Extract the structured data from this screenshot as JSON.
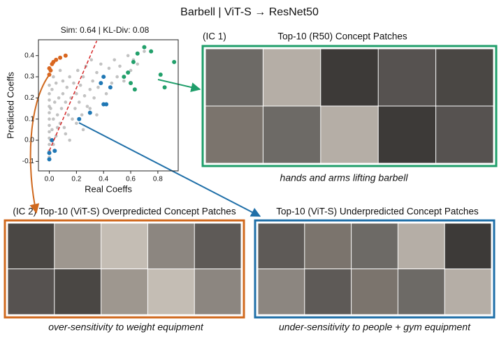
{
  "chart_data": {
    "type": "scatter",
    "title": "Barbell | ViT-S → ResNet50",
    "subtitle": "Sim: 0.64 | KL-Div: 0.08",
    "x_label": "Real Coeffs",
    "y_label": "Predicted Coeffs",
    "xlim": [
      -0.08,
      0.95
    ],
    "ylim": [
      -0.145,
      0.475
    ],
    "xticks": [
      {
        "value": 0,
        "label": "0.0"
      },
      0.2,
      0.4,
      0.6,
      0.8
    ],
    "yticks": [
      -0.1,
      {
        "value": 0,
        "label": "0.0"
      },
      0.1,
      0.2,
      0.3,
      0.4
    ],
    "series": [
      {
        "color": "#a8a8a8",
        "x": [
          0,
          0,
          0,
          0,
          0,
          0,
          0,
          0,
          0,
          0,
          0,
          0,
          0.01,
          0.01,
          0.02,
          0.02,
          0.03,
          0.03,
          0.04,
          0.05,
          0.05,
          0.06,
          0.07,
          0.08,
          0.08,
          0.09,
          0.1,
          0.1,
          0.11,
          0.12,
          0.13,
          0.14,
          0.15,
          0.16,
          0.17,
          0.18,
          0.19,
          0.2,
          0.21,
          0.22,
          0.23,
          0.24,
          0.25,
          0.26,
          0.27,
          0.28,
          0.3,
          0.31,
          0.32,
          0.33,
          0.35,
          0.36,
          0.38,
          0.4,
          0.42,
          0.44,
          0.46,
          0.48,
          0.5,
          0.52,
          0.55,
          0.58,
          0.6,
          0.62,
          0.65,
          0.7,
          0.03,
          0.06,
          0.12,
          0.15,
          0.2,
          0.25,
          0.3,
          0.35
        ],
        "values": [
          -0.08,
          -0.05,
          -0.02,
          0.01,
          0.04,
          0.07,
          0.1,
          0.13,
          0.16,
          0.19,
          0.22,
          0.26,
          0.0,
          0.15,
          0.05,
          0.24,
          0.1,
          0.3,
          0.18,
          0.02,
          0.27,
          0.12,
          0.2,
          0.08,
          0.33,
          0.15,
          0.22,
          0.28,
          0.06,
          0.18,
          0.25,
          0.12,
          0.3,
          0.2,
          0.1,
          0.27,
          0.15,
          0.22,
          0.33,
          0.18,
          0.26,
          0.12,
          0.3,
          0.21,
          0.35,
          0.16,
          0.24,
          0.38,
          0.28,
          0.2,
          0.32,
          0.25,
          0.36,
          0.3,
          0.22,
          0.34,
          0.27,
          0.38,
          0.3,
          0.35,
          0.28,
          0.4,
          0.33,
          0.38,
          0.36,
          0.42,
          -0.02,
          0.06,
          0.03,
          0.0,
          0.08,
          0.05,
          0.15,
          0.12
        ]
      },
      {
        "color": "#d9661f",
        "x": [
          0,
          0.01,
          0.02,
          0.03,
          0.05,
          0.08,
          0.12,
          0.0
        ],
        "values": [
          0.31,
          0.33,
          0.36,
          0.37,
          0.38,
          0.39,
          0.4,
          0.34
        ]
      },
      {
        "color": "#22a06b",
        "x": [
          0.55,
          0.58,
          0.6,
          0.62,
          0.65,
          0.7,
          0.75,
          0.82,
          0.92,
          0.85,
          0.63
        ],
        "values": [
          0.3,
          0.32,
          0.27,
          0.37,
          0.41,
          0.44,
          0.42,
          0.31,
          0.37,
          0.25,
          0.24
        ]
      },
      {
        "color": "#1f77b4",
        "x": [
          0,
          0,
          0.02,
          0.04,
          0.22,
          0.3,
          0.4,
          0.42,
          0.45,
          0.4,
          0.38
        ],
        "values": [
          -0.09,
          -0.06,
          0.0,
          -0.05,
          0.1,
          0.13,
          0.17,
          0.17,
          0.25,
          0.3,
          0.27
        ]
      }
    ],
    "fit_line": {
      "color": "#d62728",
      "x": [
        0,
        0.35
      ],
      "values": [
        -0.05,
        0.47
      ]
    }
  },
  "panels": [
    {
      "label": "(IC 1)",
      "title": "Top-10 (R50) Concept Patches",
      "caption": "hands and arms lifting barbell",
      "color": "#1f9e6a"
    },
    {
      "title": "(IC 2) Top-10 (ViT-S) Overpredicted Concept Patches",
      "caption": "over-sensitivity to weight equipment",
      "color": "#d0691e"
    },
    {
      "title": "Top-10 (ViT-S) Underpredicted Concept Patches",
      "caption": "under-sensitivity to people + gym equipment",
      "color": "#1f6fa8"
    }
  ]
}
